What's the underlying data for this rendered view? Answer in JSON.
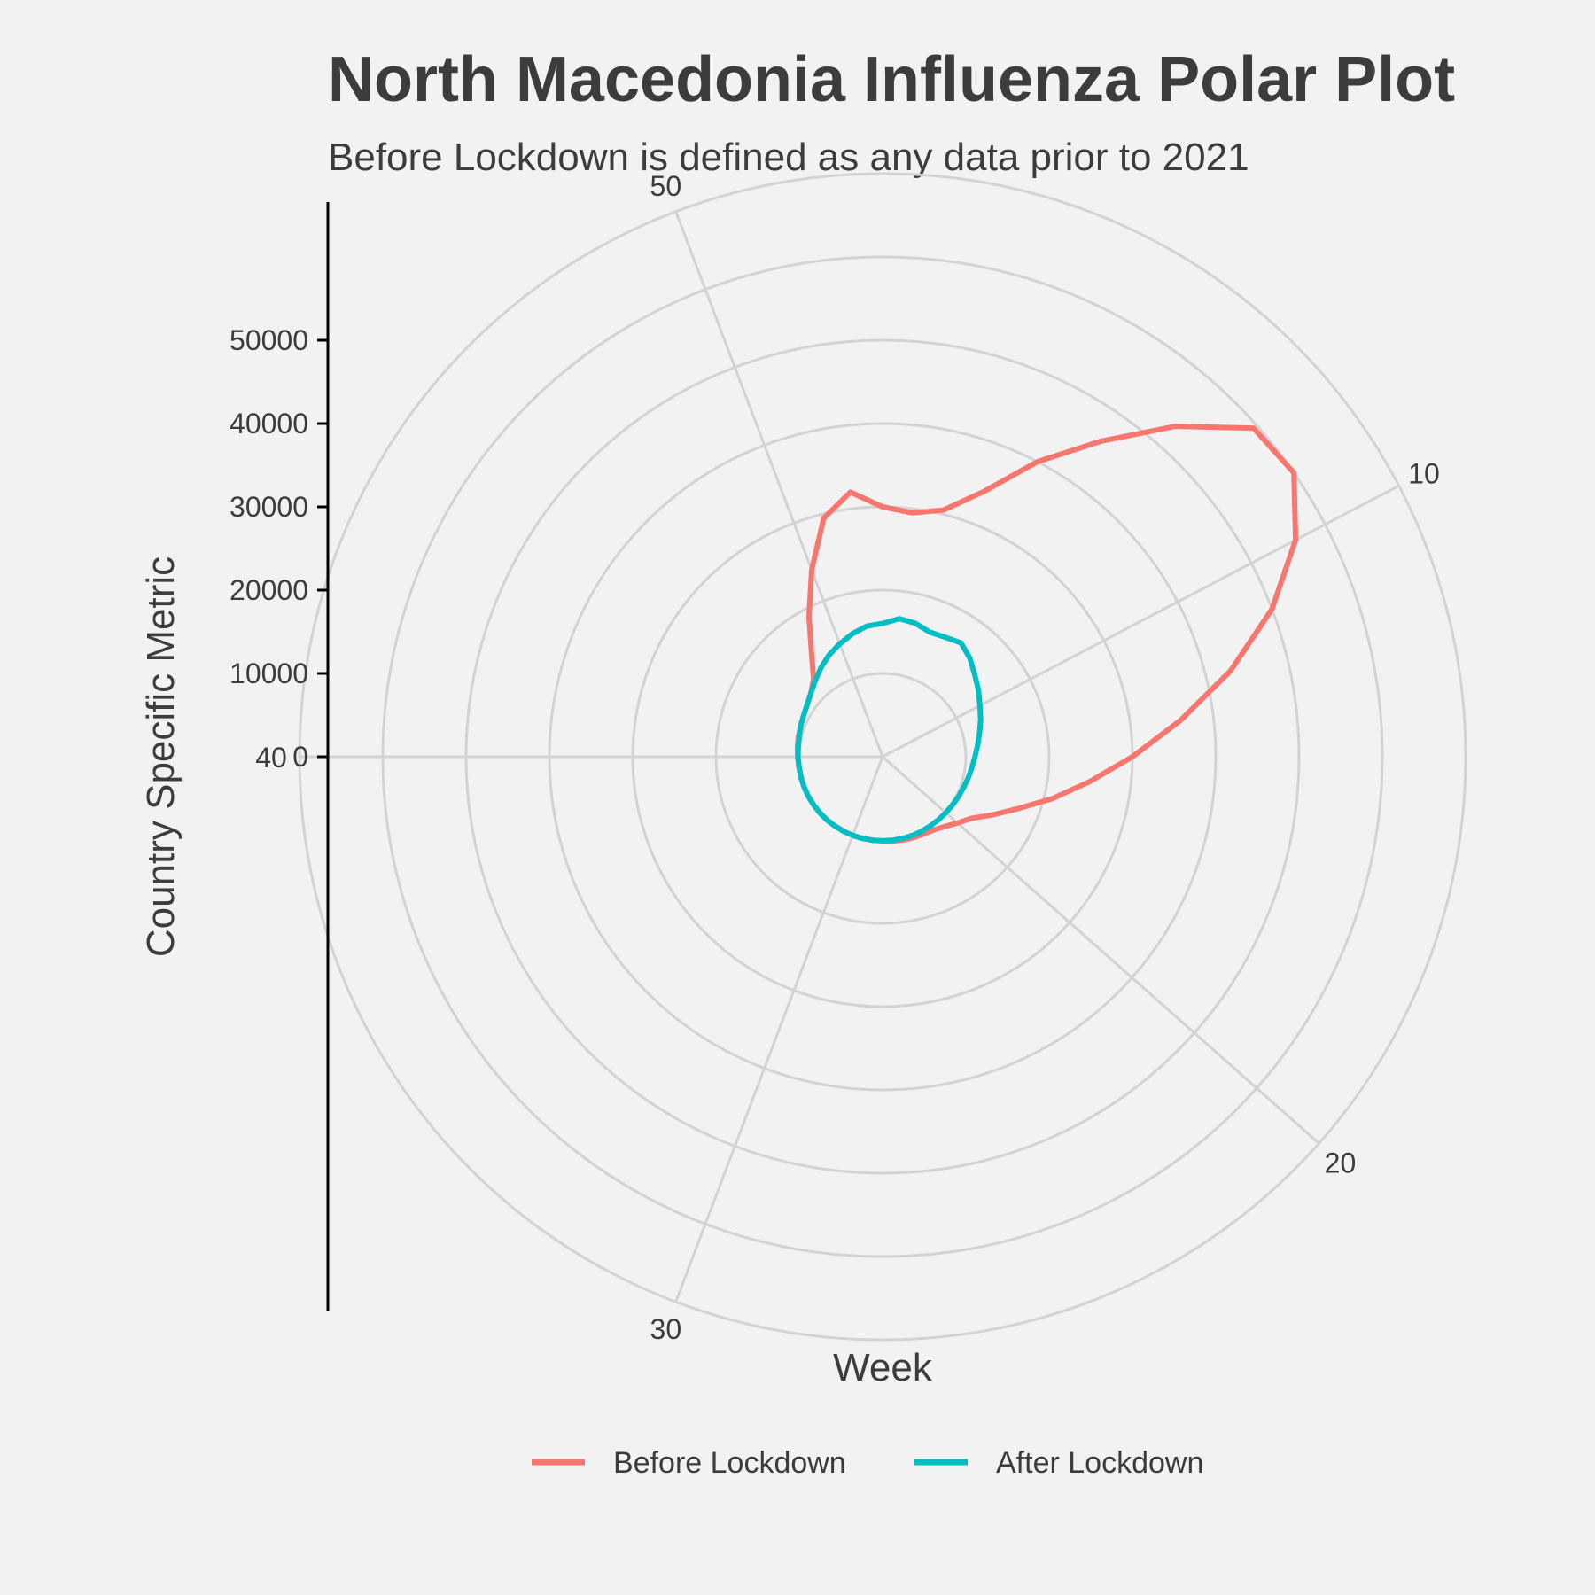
{
  "chart_data": {
    "type": "line",
    "coord": "polar",
    "title": "North Macedonia Influenza Polar Plot",
    "subtitle": "Before Lockdown is defined as any data prior to 2021",
    "xlabel": "Week",
    "ylabel": "Country Specific Metric",
    "x_ticks": [
      10,
      20,
      30,
      40,
      50
    ],
    "y_ticks": [
      0,
      10000,
      20000,
      30000,
      40000,
      50000
    ],
    "xlim": [
      1,
      53
    ],
    "ylim": [
      0,
      60000
    ],
    "grid": true,
    "legend_position": "bottom",
    "series": [
      {
        "name": "Before Lockdown",
        "color": "#F8766D",
        "points": [
          {
            "x": 1,
            "y": 20000
          },
          {
            "x": 2,
            "y": 19500
          },
          {
            "x": 3,
            "y": 20500
          },
          {
            "x": 4,
            "y": 24000
          },
          {
            "x": 5,
            "y": 30000
          },
          {
            "x": 6,
            "y": 36000
          },
          {
            "x": 7,
            "y": 43000
          },
          {
            "x": 8,
            "y": 49500
          },
          {
            "x": 9,
            "y": 50000
          },
          {
            "x": 10,
            "y": 46000
          },
          {
            "x": 11,
            "y": 40000
          },
          {
            "x": 12,
            "y": 33000
          },
          {
            "x": 13,
            "y": 26000
          },
          {
            "x": 14,
            "y": 20000
          },
          {
            "x": 15,
            "y": 15000
          },
          {
            "x": 16,
            "y": 11000
          },
          {
            "x": 17,
            "y": 7500
          },
          {
            "x": 18,
            "y": 5000
          },
          {
            "x": 19,
            "y": 3000
          },
          {
            "x": 20,
            "y": 2000
          },
          {
            "x": 21,
            "y": 1200
          },
          {
            "x": 22,
            "y": 700
          },
          {
            "x": 23,
            "y": 500
          },
          {
            "x": 24,
            "y": 400
          },
          {
            "x": 25,
            "y": 300
          },
          {
            "x": 26,
            "y": 200
          },
          {
            "x": 27,
            "y": 100
          },
          {
            "x": 28,
            "y": 100
          },
          {
            "x": 29,
            "y": 100
          },
          {
            "x": 30,
            "y": 100
          },
          {
            "x": 31,
            "y": 100
          },
          {
            "x": 32,
            "y": 100
          },
          {
            "x": 33,
            "y": 100
          },
          {
            "x": 34,
            "y": 100
          },
          {
            "x": 35,
            "y": 100
          },
          {
            "x": 36,
            "y": 100
          },
          {
            "x": 37,
            "y": 100
          },
          {
            "x": 38,
            "y": 100
          },
          {
            "x": 39,
            "y": 150
          },
          {
            "x": 40,
            "y": 200
          },
          {
            "x": 41,
            "y": 300
          },
          {
            "x": 42,
            "y": 400
          },
          {
            "x": 43,
            "y": 500
          },
          {
            "x": 44,
            "y": 700
          },
          {
            "x": 45,
            "y": 1000
          },
          {
            "x": 46,
            "y": 1500
          },
          {
            "x": 47,
            "y": 2500
          },
          {
            "x": 48,
            "y": 5000
          },
          {
            "x": 49,
            "y": 9000
          },
          {
            "x": 50,
            "y": 14000
          },
          {
            "x": 51,
            "y": 19500
          },
          {
            "x": 52,
            "y": 22000
          },
          {
            "x": 53,
            "y": 20000
          }
        ]
      },
      {
        "name": "After Lockdown",
        "color": "#00BFC4",
        "points": [
          {
            "x": 1,
            "y": 6000
          },
          {
            "x": 2,
            "y": 6700
          },
          {
            "x": 3,
            "y": 6500
          },
          {
            "x": 4,
            "y": 6000
          },
          {
            "x": 5,
            "y": 6200
          },
          {
            "x": 6,
            "y": 6600
          },
          {
            "x": 7,
            "y": 5800
          },
          {
            "x": 8,
            "y": 4800
          },
          {
            "x": 9,
            "y": 4000
          },
          {
            "x": 10,
            "y": 3200
          },
          {
            "x": 11,
            "y": 2600
          },
          {
            "x": 12,
            "y": 2000
          },
          {
            "x": 13,
            "y": 1500
          },
          {
            "x": 14,
            "y": 1100
          },
          {
            "x": 15,
            "y": 800
          },
          {
            "x": 16,
            "y": 600
          },
          {
            "x": 17,
            "y": 400
          },
          {
            "x": 18,
            "y": 300
          },
          {
            "x": 19,
            "y": 200
          },
          {
            "x": 20,
            "y": 150
          },
          {
            "x": 21,
            "y": 100
          },
          {
            "x": 22,
            "y": 100
          },
          {
            "x": 23,
            "y": 100
          },
          {
            "x": 24,
            "y": 100
          },
          {
            "x": 25,
            "y": 100
          },
          {
            "x": 26,
            "y": 100
          },
          {
            "x": 27,
            "y": 100
          },
          {
            "x": 28,
            "y": 100
          },
          {
            "x": 29,
            "y": 100
          },
          {
            "x": 30,
            "y": 100
          },
          {
            "x": 31,
            "y": 100
          },
          {
            "x": 32,
            "y": 100
          },
          {
            "x": 33,
            "y": 100
          },
          {
            "x": 34,
            "y": 100
          },
          {
            "x": 35,
            "y": 100
          },
          {
            "x": 36,
            "y": 100
          },
          {
            "x": 37,
            "y": 100
          },
          {
            "x": 38,
            "y": 100
          },
          {
            "x": 39,
            "y": 100
          },
          {
            "x": 40,
            "y": 150
          },
          {
            "x": 41,
            "y": 200
          },
          {
            "x": 42,
            "y": 300
          },
          {
            "x": 43,
            "y": 500
          },
          {
            "x": 44,
            "y": 700
          },
          {
            "x": 45,
            "y": 1000
          },
          {
            "x": 46,
            "y": 1500
          },
          {
            "x": 47,
            "y": 2200
          },
          {
            "x": 48,
            "y": 3000
          },
          {
            "x": 49,
            "y": 3800
          },
          {
            "x": 50,
            "y": 4500
          },
          {
            "x": 51,
            "y": 5200
          },
          {
            "x": 52,
            "y": 5800
          },
          {
            "x": 53,
            "y": 6000
          }
        ]
      }
    ]
  }
}
